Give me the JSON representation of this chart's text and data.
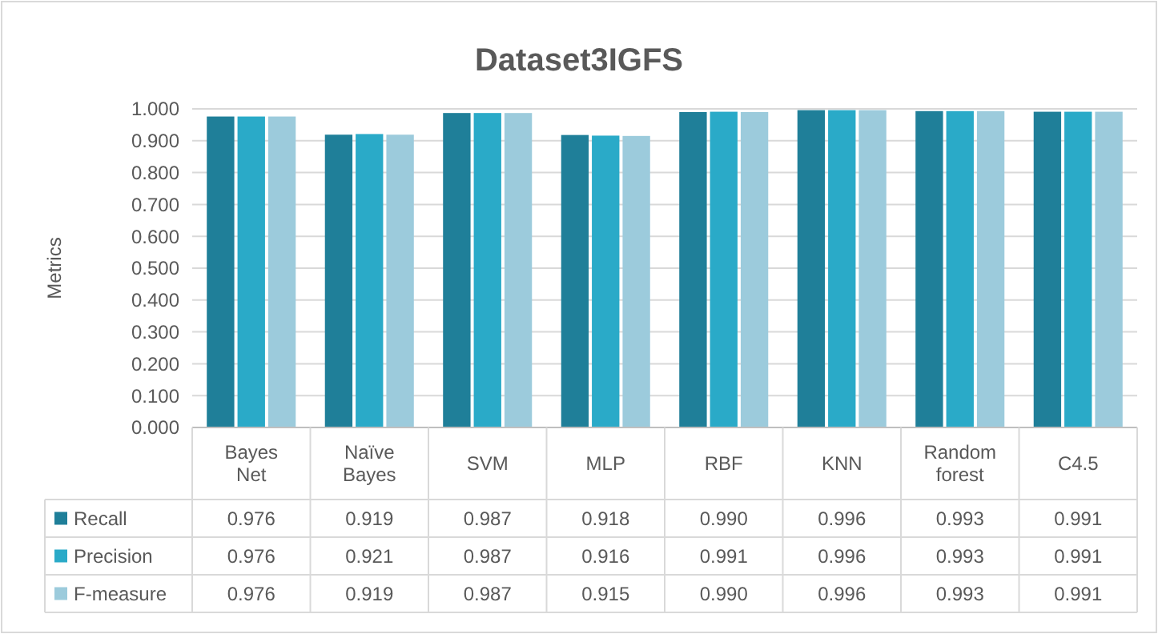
{
  "chart_data": {
    "type": "bar",
    "title": "Dataset3IGFS",
    "ylabel": "Metrics",
    "categories": [
      "Bayes Net",
      "Naïve Bayes",
      "SVM",
      "MLP",
      "RBF",
      "KNN",
      "Random forest",
      "C4.5"
    ],
    "series": [
      {
        "name": "Recall",
        "color": "#1f7f99",
        "values": [
          0.976,
          0.919,
          0.987,
          0.918,
          0.99,
          0.996,
          0.993,
          0.991
        ],
        "value_labels": [
          "0.976",
          "0.919",
          "0.987",
          "0.918",
          "0.990",
          "0.996",
          "0.993",
          "0.991"
        ]
      },
      {
        "name": "Precision",
        "color": "#2aaac8",
        "values": [
          0.976,
          0.921,
          0.987,
          0.916,
          0.991,
          0.996,
          0.993,
          0.991
        ],
        "value_labels": [
          "0.976",
          "0.921",
          "0.987",
          "0.916",
          "0.991",
          "0.996",
          "0.993",
          "0.991"
        ]
      },
      {
        "name": "F-measure",
        "color": "#9ccbdc",
        "values": [
          0.976,
          0.919,
          0.987,
          0.915,
          0.99,
          0.996,
          0.993,
          0.991
        ],
        "value_labels": [
          "0.976",
          "0.919",
          "0.987",
          "0.915",
          "0.990",
          "0.996",
          "0.993",
          "0.991"
        ]
      }
    ],
    "ylim": [
      0,
      1
    ],
    "yticks": [
      {
        "value": 0,
        "label": "0.000"
      },
      {
        "value": 0.1,
        "label": "0.100"
      },
      {
        "value": 0.2,
        "label": "0.200"
      },
      {
        "value": 0.3,
        "label": "0.300"
      },
      {
        "value": 0.4,
        "label": "0.400"
      },
      {
        "value": 0.5,
        "label": "0.500"
      },
      {
        "value": 0.6,
        "label": "0.600"
      },
      {
        "value": 0.7,
        "label": "0.700"
      },
      {
        "value": 0.8,
        "label": "0.800"
      },
      {
        "value": 0.9,
        "label": "0.900"
      },
      {
        "value": 1,
        "label": "1.000"
      }
    ],
    "grid": "y",
    "legend": "bottom"
  }
}
